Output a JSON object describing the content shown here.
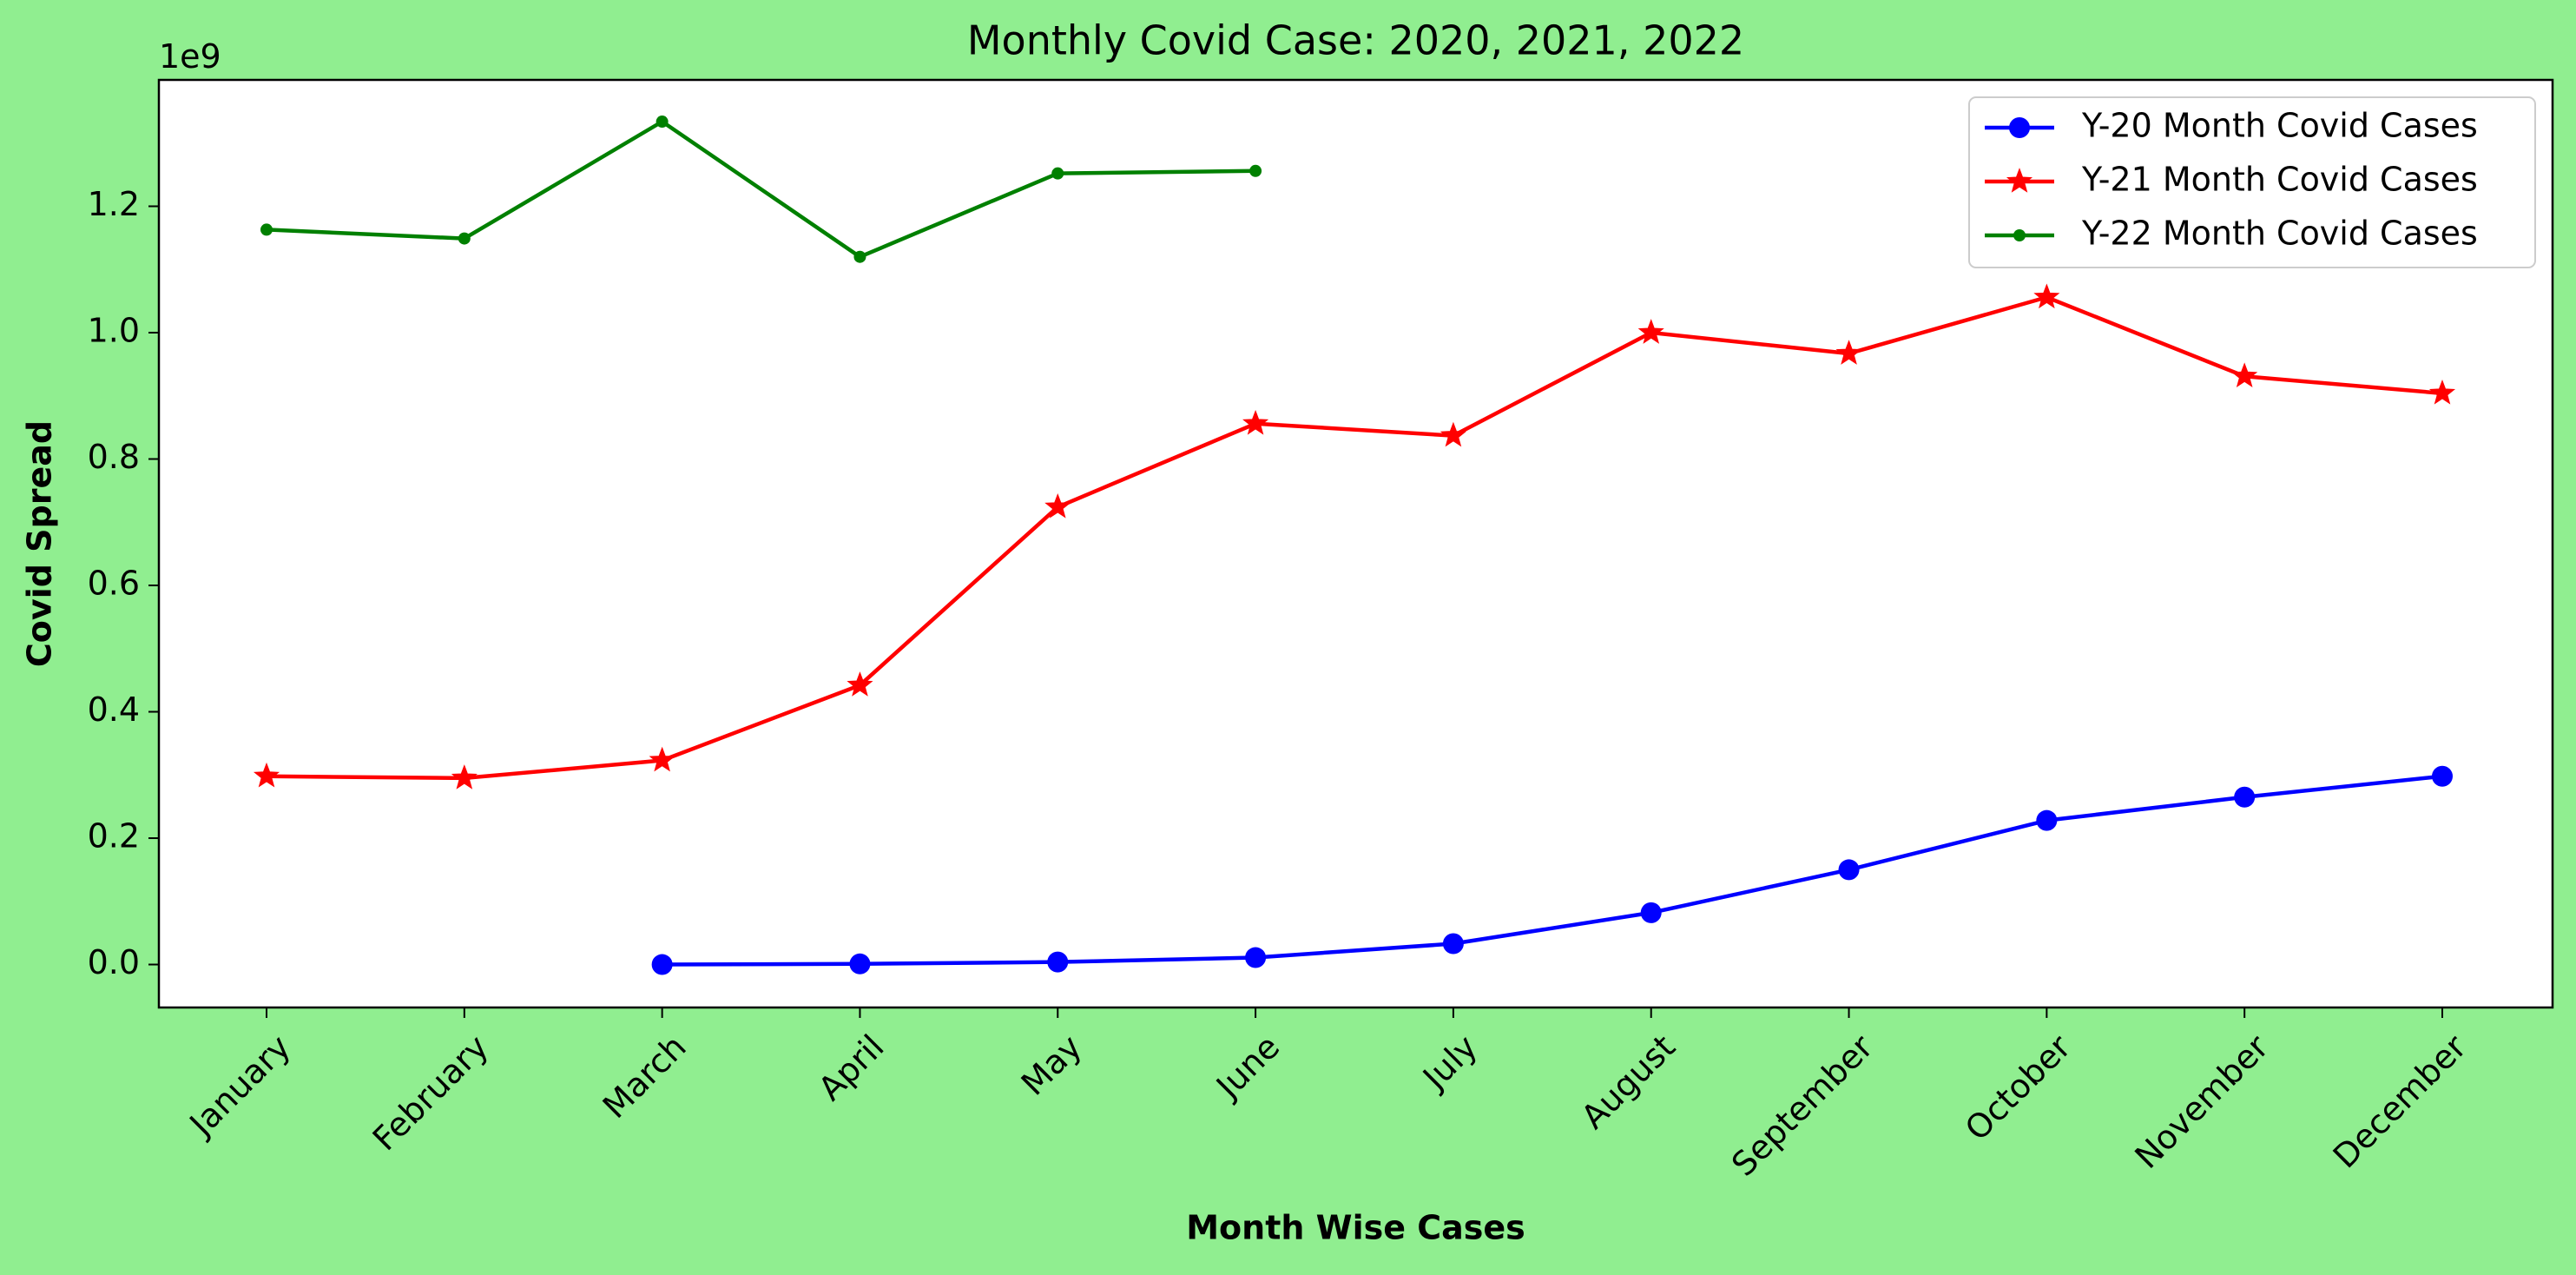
{
  "chart_data": {
    "type": "line",
    "title": "Monthly Covid Case: 2020, 2021, 2022",
    "xlabel": "Month Wise Cases",
    "ylabel": "Covid Spread",
    "y_offset_label": "1e9",
    "y_scale": 1000000000,
    "categories": [
      "January",
      "February",
      "March",
      "April",
      "May",
      "June",
      "July",
      "August",
      "September",
      "October",
      "November",
      "December"
    ],
    "ylim": [
      -0.068,
      1.4
    ],
    "yticks": [
      0.0,
      0.2,
      0.4,
      0.6,
      0.8,
      1.0,
      1.2
    ],
    "ytick_labels": [
      "0.0",
      "0.2",
      "0.4",
      "0.6",
      "0.8",
      "1.0",
      "1.2"
    ],
    "grid": false,
    "legend_position": "top-right",
    "colors": {
      "background": "#90EE90",
      "plot_background": "#FFFFFF",
      "xlabel": "#0000DD",
      "y20": "#0000FF",
      "y21": "#FF0000",
      "y22": "#008000"
    },
    "series": [
      {
        "name": "Y-20 Month Covid Cases",
        "color": "#0000FF",
        "marker": "circle",
        "values": [
          null,
          null,
          0.0,
          0.001,
          0.004,
          0.011,
          0.033,
          0.082,
          0.15,
          0.228,
          0.265,
          0.298
        ]
      },
      {
        "name": "Y-21 Month Covid Cases",
        "color": "#FF0000",
        "marker": "star",
        "values": [
          0.298,
          0.295,
          0.323,
          0.442,
          0.724,
          0.856,
          0.837,
          1.0,
          0.967,
          1.056,
          0.931,
          0.904
        ]
      },
      {
        "name": "Y-22 Month Covid Cases",
        "color": "#008000",
        "marker": "point",
        "values": [
          1.163,
          1.149,
          1.334,
          1.12,
          1.252,
          1.256,
          null,
          null,
          null,
          null,
          null,
          null
        ]
      }
    ]
  }
}
